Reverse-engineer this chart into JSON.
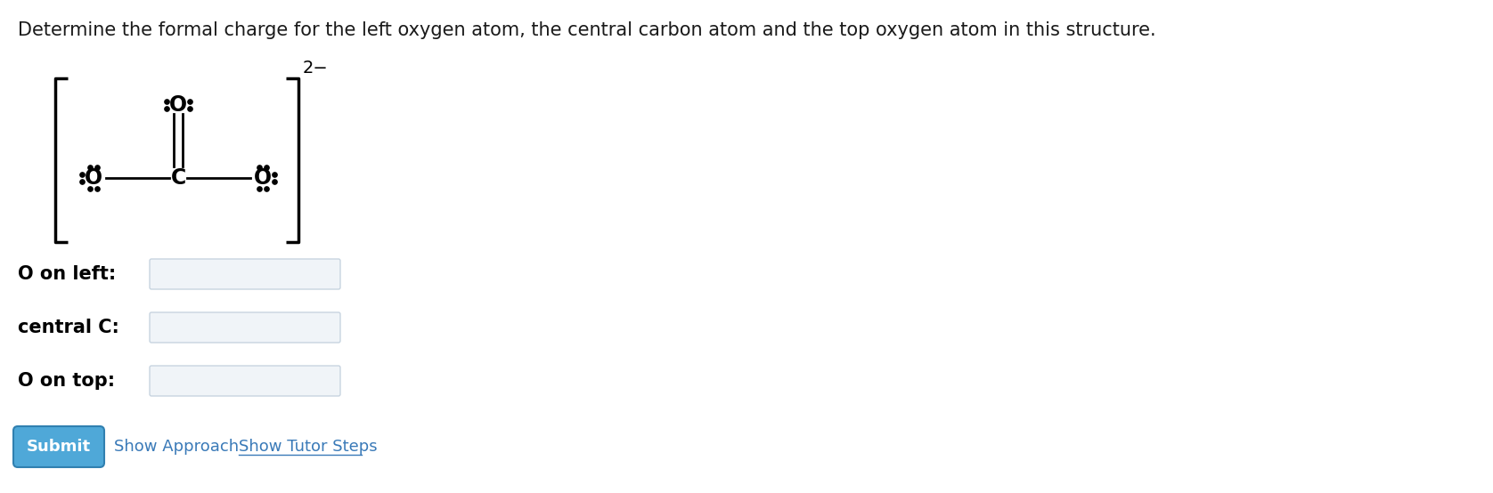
{
  "title": "Determine the formal charge for the left oxygen atom, the central carbon atom and the top oxygen atom in this structure.",
  "title_fontsize": 15,
  "title_color": "#1a1a1a",
  "bg_color": "#ffffff",
  "label_o_left": "O on left:",
  "label_c": "central C:",
  "label_o_top": "O on top:",
  "label_fontsize": 15,
  "submit_text": "Submit",
  "submit_color": "#4fa8d8",
  "show_approach_text": "Show Approach",
  "show_tutor_text": "Show Tutor Steps",
  "link_color": "#3a7ab8",
  "input_box_color": "#f0f4f8",
  "input_box_border": "#c8d4e0"
}
